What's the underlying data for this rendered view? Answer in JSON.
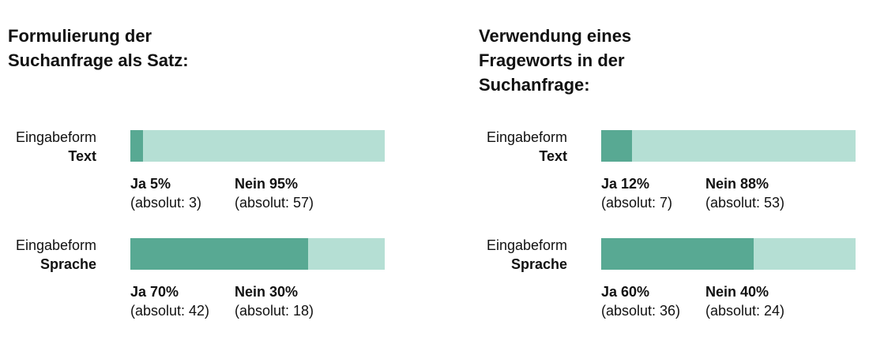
{
  "chart_data": [
    {
      "type": "bar",
      "stacked": true,
      "orientation": "horizontal",
      "title": "Formulierung der Suchanfrage als Satz:",
      "title_lines": [
        "Formulierung der",
        "Suchanfrage als Satz:"
      ],
      "categories": [
        {
          "form_label": "Eingabeform",
          "name": "Text"
        },
        {
          "form_label": "Eingabeform",
          "name": "Sprache"
        }
      ],
      "series": [
        {
          "name": "Ja",
          "color": "#58a993",
          "percent": [
            5,
            70
          ],
          "absolute": [
            3,
            42
          ]
        },
        {
          "name": "Nein",
          "color": "#b5dfd4",
          "percent": [
            95,
            30
          ],
          "absolute": [
            57,
            18
          ]
        }
      ],
      "xlim": [
        0,
        100
      ],
      "labels": [
        [
          {
            "main": "Ja 5%",
            "abs": "(absolut: 3)"
          },
          {
            "main": "Nein 95%",
            "abs": "(absolut: 57)"
          }
        ],
        [
          {
            "main": "Ja 70%",
            "abs": "(absolut: 42)"
          },
          {
            "main": "Nein 30%",
            "abs": "(absolut: 18)"
          }
        ]
      ]
    },
    {
      "type": "bar",
      "stacked": true,
      "orientation": "horizontal",
      "title": "Verwendung eines Frageworts in der Suchanfrage:",
      "title_lines": [
        "Verwendung eines",
        "Frageworts in der",
        "Suchanfrage:"
      ],
      "categories": [
        {
          "form_label": "Eingabeform",
          "name": "Text"
        },
        {
          "form_label": "Eingabeform",
          "name": "Sprache"
        }
      ],
      "series": [
        {
          "name": "Ja",
          "color": "#58a993",
          "percent": [
            12,
            60
          ],
          "absolute": [
            7,
            36
          ]
        },
        {
          "name": "Nein",
          "color": "#b5dfd4",
          "percent": [
            88,
            40
          ],
          "absolute": [
            53,
            24
          ]
        }
      ],
      "xlim": [
        0,
        100
      ],
      "labels": [
        [
          {
            "main": "Ja 12%",
            "abs": "(absolut: 7)"
          },
          {
            "main": "Nein 88%",
            "abs": "(absolut: 53)"
          }
        ],
        [
          {
            "main": "Ja 60%",
            "abs": "(absolut: 36)"
          },
          {
            "main": "Nein 40%",
            "abs": "(absolut: 24)"
          }
        ]
      ]
    }
  ]
}
